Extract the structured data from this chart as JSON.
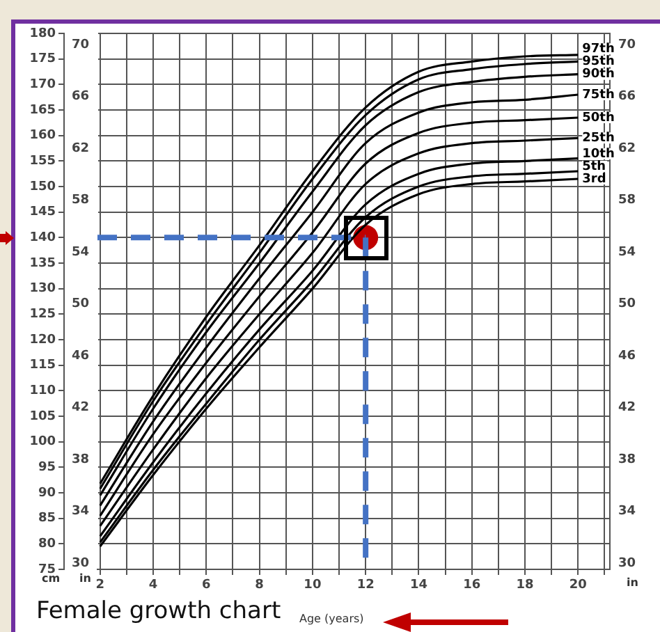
{
  "chart_data": {
    "type": "line",
    "annotations": [
      "Female growth chart"
    ],
    "xlabel": "Age (years)",
    "ylabel": "cm",
    "y2label": "in",
    "y3label": "in",
    "x": [
      2,
      4,
      6,
      8,
      10,
      12,
      14,
      16,
      18,
      20
    ],
    "series": [
      {
        "name": "3rd",
        "color": "#000000",
        "values": [
          79.5,
          93.5,
          106.5,
          118.5,
          130,
          142.5,
          148.5,
          150.5,
          151,
          151.5
        ]
      },
      {
        "name": "5th",
        "color": "#000000",
        "values": [
          80.3,
          94.5,
          107.5,
          120,
          131.5,
          144,
          150,
          152,
          152.5,
          153
        ]
      },
      {
        "name": "10th",
        "color": "#000000",
        "values": [
          81.5,
          96,
          109.5,
          122,
          133.5,
          146.5,
          152.5,
          154.5,
          155,
          155.5
        ]
      },
      {
        "name": "25th",
        "color": "#000000",
        "values": [
          83.5,
          98.5,
          112.5,
          125,
          137,
          150.5,
          156.5,
          158.5,
          159,
          159.5
        ]
      },
      {
        "name": "50th",
        "color": "#000000",
        "values": [
          85.5,
          101.5,
          115.5,
          128.5,
          141,
          154.5,
          160.5,
          162.5,
          163,
          163.5
        ]
      },
      {
        "name": "75th",
        "color": "#000000",
        "values": [
          87.5,
          104,
          118.5,
          132,
          145,
          158.5,
          164.5,
          166.5,
          167,
          168
        ]
      },
      {
        "name": "90th",
        "color": "#000000",
        "values": [
          89.5,
          106.5,
          121.5,
          135,
          149,
          162,
          168.5,
          170.5,
          171.5,
          172
        ]
      },
      {
        "name": "95th",
        "color": "#000000",
        "values": [
          90.8,
          108,
          123,
          137,
          151.5,
          164,
          171,
          173,
          174,
          174.5
        ]
      },
      {
        "name": "97th",
        "color": "#000000",
        "values": [
          91.8,
          109,
          124.5,
          138.5,
          153,
          165.5,
          172.5,
          174.5,
          175.5,
          175.8
        ]
      },
      {
        "type": "scatter",
        "marker": "circle",
        "color": "#c00000",
        "x": [
          12
        ],
        "values": [
          140
        ]
      }
    ],
    "ref_lines": [
      {
        "axis": "x",
        "value": 12,
        "color": "#4472c4",
        "line_style": "dashed"
      },
      {
        "axis": "y",
        "value": 140,
        "color": "#4472c4",
        "line_style": "dashed"
      }
    ],
    "marker": "none",
    "line_style": "solid",
    "legend": false,
    "grid": true,
    "xlim": [
      1.9,
      21.2
    ],
    "xticks": [
      2,
      {
        "value": 3,
        "label": null
      },
      4,
      {
        "value": 5,
        "label": null
      },
      6,
      {
        "value": 7,
        "label": null
      },
      8,
      {
        "value": 9,
        "label": null
      },
      10,
      {
        "value": 11,
        "label": null
      },
      12,
      {
        "value": 13,
        "label": null
      },
      14,
      {
        "value": 15,
        "label": null
      },
      16,
      {
        "value": 17,
        "label": null
      },
      18,
      {
        "value": 19,
        "label": null
      },
      20,
      {
        "value": 21,
        "label": null
      }
    ],
    "ylim": [
      75,
      180
    ],
    "yticks": [
      75,
      80,
      85,
      90,
      95,
      100,
      105,
      110,
      115,
      120,
      125,
      130,
      135,
      140,
      145,
      150,
      155,
      160,
      165,
      170,
      175,
      180
    ],
    "y2lim": [
      29.53,
      70.87
    ],
    "y2ticks": [
      30,
      34,
      38,
      42,
      46,
      50,
      54,
      58,
      62,
      66,
      70
    ],
    "y3lim": [
      29.53,
      70.87
    ],
    "y3ticks": [
      30,
      34,
      38,
      42,
      46,
      50,
      54,
      58,
      62,
      66,
      70
    ]
  }
}
